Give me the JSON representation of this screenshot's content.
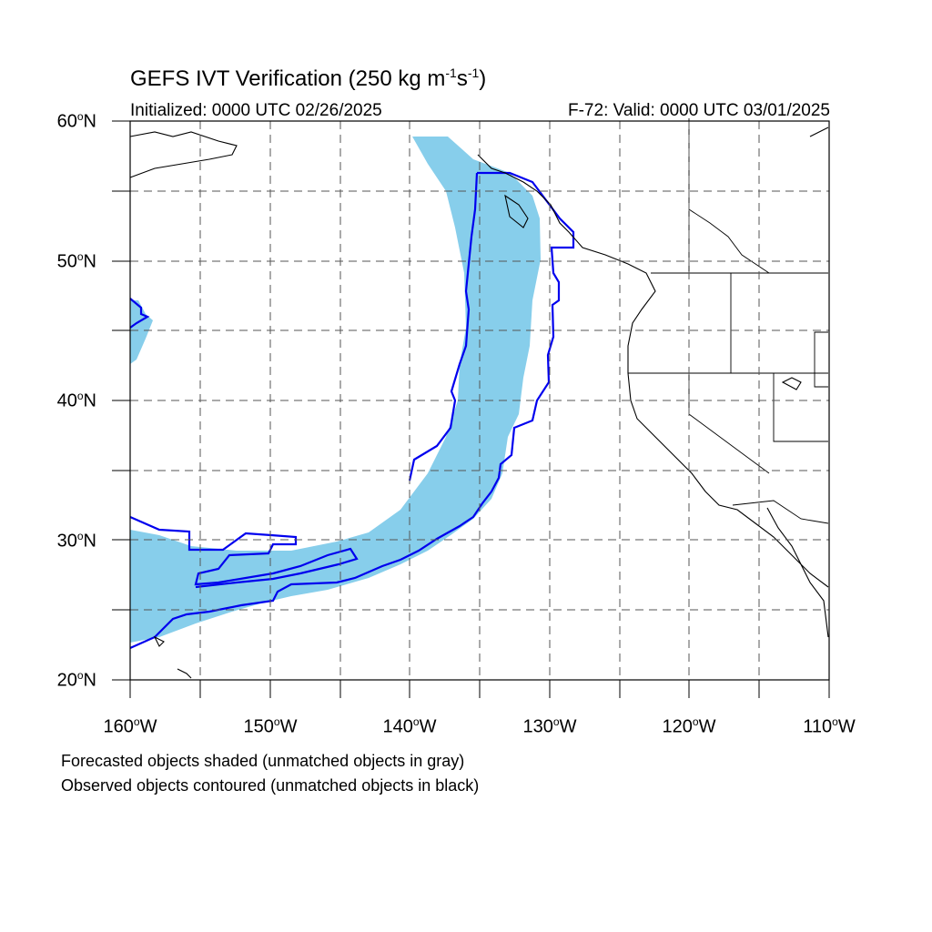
{
  "title": {
    "prefix": "GEFS IVT Verification (250 kg m",
    "exp1": "-1",
    "mid": "s",
    "exp2": "-1",
    "suffix": ")"
  },
  "initialized": "Initialized: 0000 UTC 02/26/2025",
  "valid": "F-72: Valid: 0000 UTC 03/01/2025",
  "lat_labels": [
    {
      "deg": "60",
      "hemi": "N"
    },
    {
      "deg": "50",
      "hemi": "N"
    },
    {
      "deg": "40",
      "hemi": "N"
    },
    {
      "deg": "30",
      "hemi": "N"
    },
    {
      "deg": "20",
      "hemi": "N"
    }
  ],
  "lon_labels": [
    {
      "deg": "160",
      "hemi": "W"
    },
    {
      "deg": "150",
      "hemi": "W"
    },
    {
      "deg": "140",
      "hemi": "W"
    },
    {
      "deg": "130",
      "hemi": "W"
    },
    {
      "deg": "120",
      "hemi": "W"
    },
    {
      "deg": "110",
      "hemi": "W"
    }
  ],
  "notes": {
    "forecast": "Forecasted objects shaded (unmatched objects in gray)",
    "observed": "Observed objects contoured (unmatched objects in black)"
  },
  "colors": {
    "forecast_fill": "#87ceeb",
    "observed_contour": "#0000ee",
    "coast": "#000000",
    "grid": "#555555"
  },
  "map_extent": {
    "lon": [
      -160,
      -110
    ],
    "lat": [
      20,
      60
    ]
  }
}
